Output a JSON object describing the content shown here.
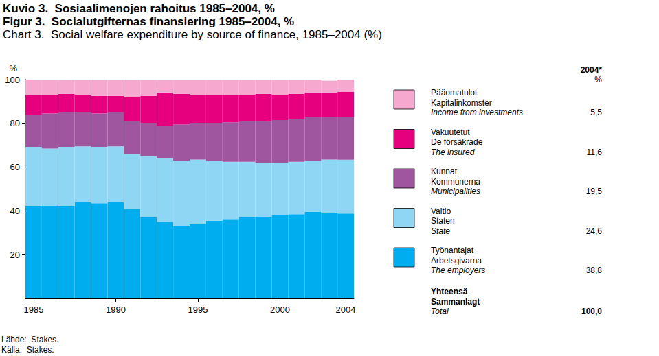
{
  "chart_data": {
    "type": "area",
    "stacked": true,
    "grid": false,
    "title": [
      "Kuvio 3.  Sosiaalimenojen rahoitus 1985–2004, %",
      "Figur 3.  Socialutgifternas finansiering 1985–2004, %",
      "Chart 3.  Social welfare expenditure by source of finance, 1985–2004 (%)"
    ],
    "ylabel": "%",
    "categories": [
      "1985",
      null,
      null,
      null,
      null,
      "1990",
      null,
      null,
      null,
      null,
      "1995",
      null,
      null,
      null,
      null,
      "2000",
      null,
      null,
      null,
      "2004"
    ],
    "ylim": [
      0,
      100
    ],
    "yticks": [
      20,
      40,
      60,
      80,
      100
    ],
    "legend_title": [
      "2004*",
      "%"
    ],
    "series": [
      {
        "name": "Työnantajat",
        "labels": [
          "Työnantajat",
          "Arbetsgivarna",
          "The employers"
        ],
        "color": "#00aeef",
        "values": [
          42,
          42.5,
          42,
          44,
          43.5,
          44,
          41,
          37,
          35,
          33,
          34,
          35.5,
          36,
          37,
          37.5,
          38,
          38.5,
          39.5,
          39,
          38.8
        ],
        "legend_value": 38.8,
        "legend_value_label": "38,8"
      },
      {
        "name": "Valtio",
        "labels": [
          "Valtio",
          "Staten",
          "State"
        ],
        "color": "#8fd6f5",
        "values": [
          27,
          26,
          27,
          25.5,
          25.5,
          25.5,
          25,
          28,
          29,
          30,
          29.5,
          27.5,
          26.5,
          25.5,
          24.5,
          24,
          24,
          23.5,
          24.5,
          24.6
        ],
        "legend_value": 24.6,
        "legend_value_label": "24,6"
      },
      {
        "name": "Kunnat",
        "labels": [
          "Kunnat",
          "Kommunerna",
          "Municipalities"
        ],
        "color": "#a0559f",
        "values": [
          15,
          16,
          16,
          15.5,
          15.5,
          15.5,
          15,
          15,
          15,
          16.5,
          16.5,
          17,
          18,
          18.5,
          19,
          19.5,
          19.5,
          20,
          19.5,
          19.5
        ],
        "legend_value": 19.5,
        "legend_value_label": "19,5"
      },
      {
        "name": "Vakuutetut",
        "labels": [
          "Vakuutetut",
          "De försäkrade",
          "The insured"
        ],
        "color": "#e6007e",
        "values": [
          9,
          8.5,
          8.5,
          8,
          8,
          7.5,
          11,
          12.5,
          15,
          14,
          13,
          13,
          12.5,
          12,
          12.5,
          11.5,
          11.5,
          11,
          11,
          11.6
        ],
        "legend_value": 11.6,
        "legend_value_label": "11,6"
      },
      {
        "name": "Pääomatulot",
        "labels": [
          "Pääomatulot",
          "Kapitalinkomster",
          "Income from investments"
        ],
        "color": "#f7a8cf",
        "values": [
          7,
          7,
          6.5,
          7,
          7.5,
          7.5,
          8,
          7.5,
          6,
          6.5,
          7,
          7,
          7,
          7,
          6.5,
          7,
          6.5,
          6,
          5.5,
          5.5
        ],
        "legend_value": 5.5,
        "legend_value_label": "5,5"
      }
    ],
    "total": {
      "labels": [
        "Yhteensä",
        "Sammanlagt",
        "Total"
      ],
      "value": 100.0,
      "value_label": "100,0"
    },
    "source": [
      "Lähde:  Stakes.",
      "Källa:  Stakes."
    ]
  }
}
